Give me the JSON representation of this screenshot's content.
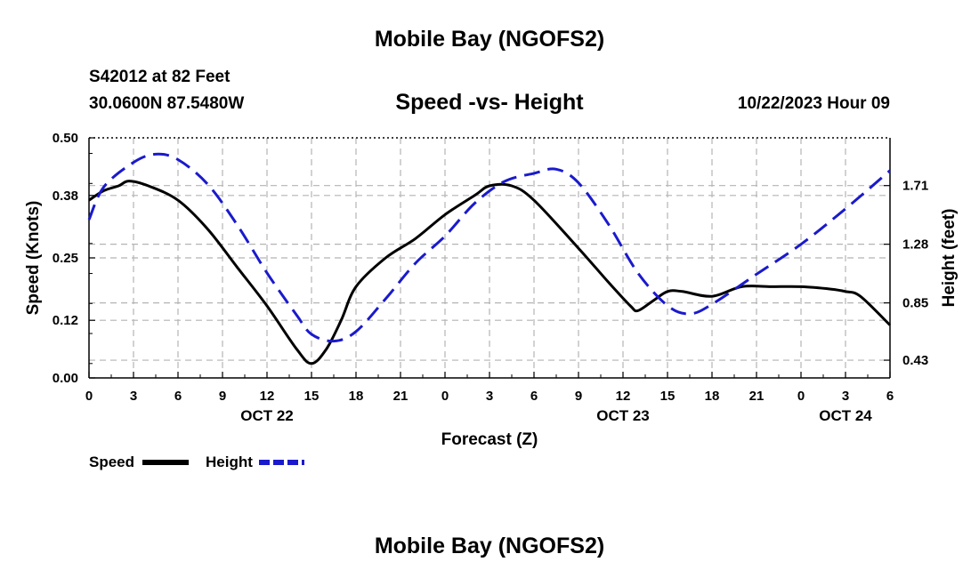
{
  "header": {
    "title": "Mobile Bay (NGOFS2)",
    "station": "S42012 at 82 Feet",
    "coordinates": "30.0600N  87.5480W",
    "chart_subtitle": "Speed -vs- Height",
    "forecast_time": "10/22/2023 Hour 09"
  },
  "footer": {
    "title": "Mobile Bay (NGOFS2)"
  },
  "legend": {
    "speed_label": "Speed",
    "height_label": "Height"
  },
  "chart_data": {
    "type": "line",
    "title": "Speed -vs- Height",
    "xlabel": "Forecast (Z)",
    "ylabel": "Speed (Knots)",
    "y2label": "Height (feet)",
    "xlim": [
      0,
      54
    ],
    "ylim": [
      0,
      0.5
    ],
    "y2lim": [
      0.3,
      2.06
    ],
    "x_ticks": [
      0,
      3,
      6,
      9,
      12,
      15,
      18,
      21,
      24,
      27,
      30,
      33,
      36,
      39,
      42,
      45,
      48,
      51,
      54
    ],
    "x_tick_labels": [
      "0",
      "3",
      "6",
      "9",
      "12",
      "15",
      "18",
      "21",
      "0",
      "3",
      "6",
      "9",
      "12",
      "15",
      "18",
      "21",
      "0",
      "3",
      "6"
    ],
    "date_labels": [
      {
        "x": 12,
        "label": "OCT 22"
      },
      {
        "x": 36,
        "label": "OCT 23"
      },
      {
        "x": 51,
        "label": "OCT 24"
      }
    ],
    "y_ticks": [
      0.0,
      0.12,
      0.25,
      0.38,
      0.5
    ],
    "y_tick_labels": [
      "0.00",
      "0.12",
      "0.25",
      "0.38",
      "0.50"
    ],
    "y2_ticks": [
      0.43,
      0.85,
      1.28,
      1.71
    ],
    "y2_tick_labels": [
      "0.43",
      "0.85",
      "1.28",
      "1.71"
    ],
    "grid": true,
    "legend_position": "bottom-left",
    "series": [
      {
        "name": "Speed",
        "axis": "left",
        "color": "#000000",
        "style": "solid",
        "points": [
          [
            0,
            0.37
          ],
          [
            1,
            0.39
          ],
          [
            2,
            0.4
          ],
          [
            2.7,
            0.41
          ],
          [
            4,
            0.4
          ],
          [
            6,
            0.37
          ],
          [
            8,
            0.31
          ],
          [
            10,
            0.23
          ],
          [
            12,
            0.15
          ],
          [
            14,
            0.06
          ],
          [
            15,
            0.03
          ],
          [
            16,
            0.06
          ],
          [
            17,
            0.12
          ],
          [
            18,
            0.19
          ],
          [
            20,
            0.25
          ],
          [
            22,
            0.29
          ],
          [
            24,
            0.34
          ],
          [
            26,
            0.38
          ],
          [
            27,
            0.4
          ],
          [
            28.5,
            0.4
          ],
          [
            30,
            0.37
          ],
          [
            33,
            0.27
          ],
          [
            35,
            0.2
          ],
          [
            36.5,
            0.15
          ],
          [
            37,
            0.14
          ],
          [
            38,
            0.16
          ],
          [
            39,
            0.18
          ],
          [
            40,
            0.18
          ],
          [
            42,
            0.17
          ],
          [
            44,
            0.19
          ],
          [
            46,
            0.19
          ],
          [
            48,
            0.19
          ],
          [
            50,
            0.185
          ],
          [
            51,
            0.18
          ],
          [
            52,
            0.17
          ],
          [
            54,
            0.11
          ]
        ]
      },
      {
        "name": "Height",
        "axis": "right",
        "color": "#1a1acc",
        "style": "dashed",
        "points": [
          [
            0,
            1.46
          ],
          [
            1,
            1.7
          ],
          [
            3,
            1.88
          ],
          [
            4.5,
            1.94
          ],
          [
            6,
            1.9
          ],
          [
            8,
            1.72
          ],
          [
            10,
            1.42
          ],
          [
            12,
            1.07
          ],
          [
            14,
            0.76
          ],
          [
            15,
            0.62
          ],
          [
            16.5,
            0.57
          ],
          [
            18,
            0.64
          ],
          [
            20,
            0.88
          ],
          [
            22,
            1.14
          ],
          [
            24,
            1.34
          ],
          [
            26,
            1.58
          ],
          [
            28,
            1.74
          ],
          [
            30,
            1.8
          ],
          [
            31.5,
            1.83
          ],
          [
            33,
            1.73
          ],
          [
            35,
            1.43
          ],
          [
            37,
            1.07
          ],
          [
            39,
            0.83
          ],
          [
            40.5,
            0.77
          ],
          [
            42,
            0.84
          ],
          [
            45,
            1.06
          ],
          [
            48,
            1.28
          ],
          [
            51,
            1.54
          ],
          [
            54,
            1.82
          ]
        ]
      }
    ]
  }
}
